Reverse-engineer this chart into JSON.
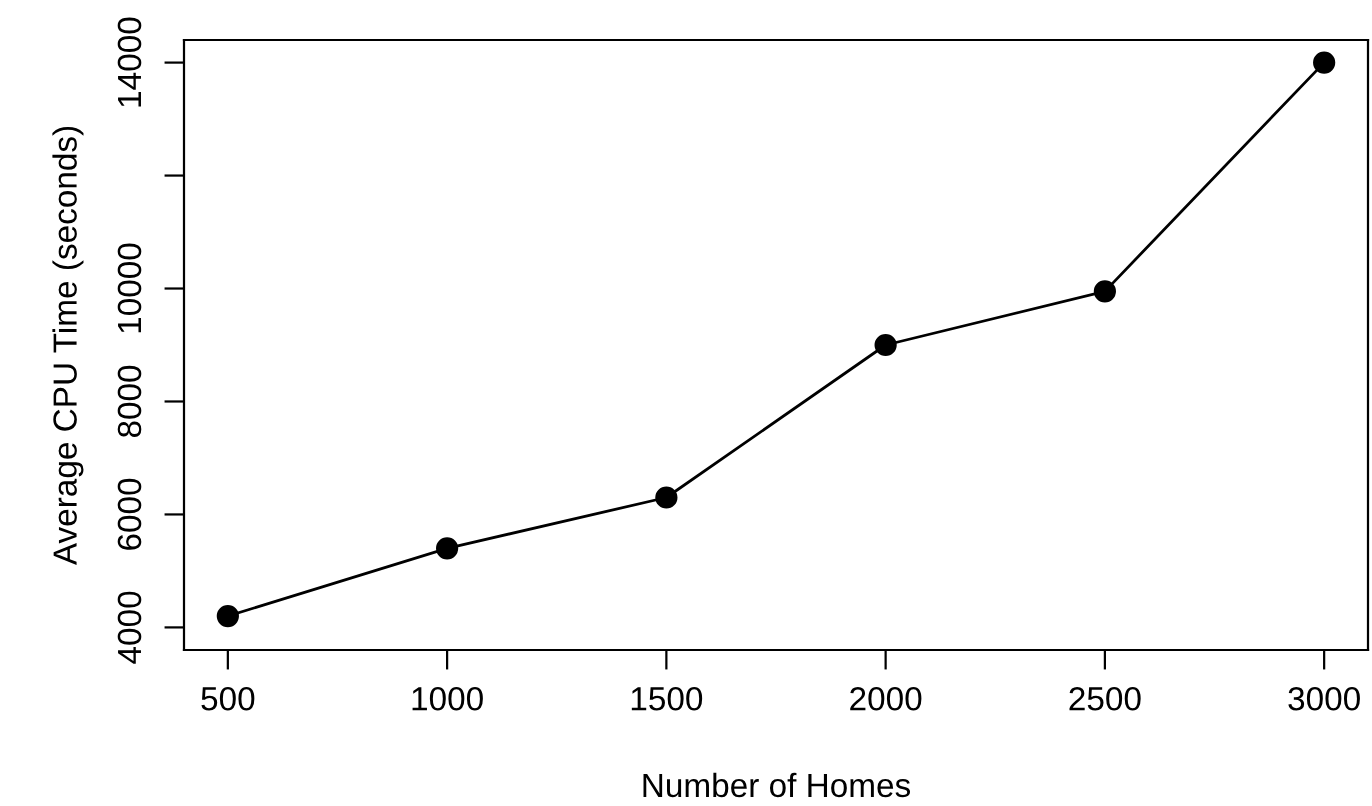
{
  "chart_data": {
    "type": "line",
    "xlabel": "Number of Homes",
    "ylabel": "Average CPU Time (seconds)",
    "x": [
      500,
      1000,
      1500,
      2000,
      2500,
      3000
    ],
    "series": [
      {
        "color": "#000000",
        "values": [
          4200,
          5400,
          6300,
          9000,
          9950,
          14000
        ]
      }
    ],
    "xlim": [
      400,
      3100
    ],
    "xticks": [
      500,
      1000,
      1500,
      2000,
      2500,
      3000
    ],
    "ylim": [
      3600,
      14400
    ],
    "yticks": [
      4000,
      6000,
      8000,
      10000,
      {
        "value": 12000,
        "label": null
      },
      14000
    ],
    "marker": "circle",
    "line_style": "solid",
    "grid": false,
    "legend": false
  }
}
